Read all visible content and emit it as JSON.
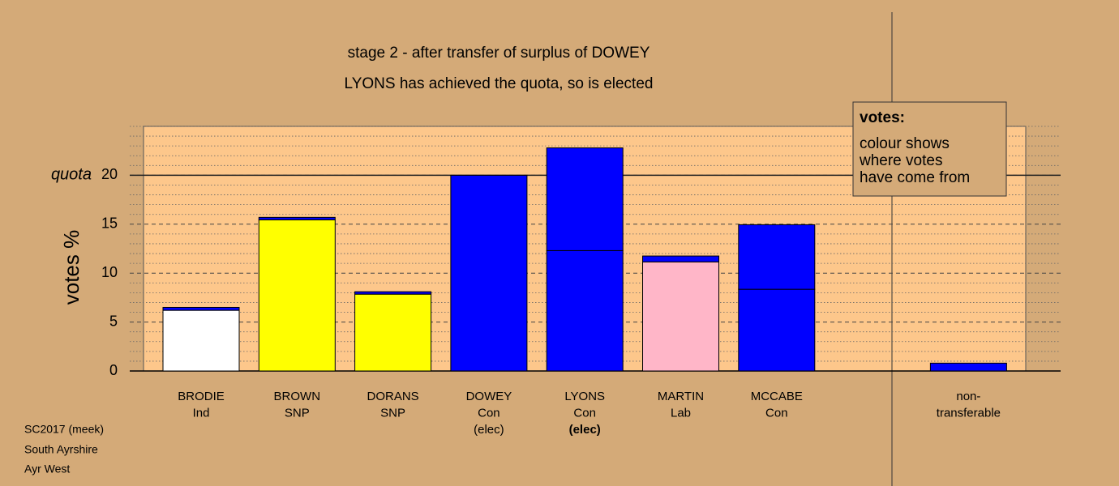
{
  "chart_data": {
    "type": "bar",
    "stacked": true,
    "title": "stage 2 - after transfer of surplus of DOWEY",
    "subtitle": "LYONS has achieved the quota, so is elected",
    "ylabel": "votes %",
    "quota": {
      "label": "quota",
      "value": 20
    },
    "categories": [
      [
        "BRODIE",
        "Ind"
      ],
      [
        "BROWN",
        "SNP"
      ],
      [
        "DORANS",
        "SNP"
      ],
      [
        "DOWEY",
        "Con",
        "(elec)"
      ],
      [
        "LYONS",
        "Con",
        "(elec)"
      ],
      [
        "MARTIN",
        "Lab"
      ],
      [
        "MCCABE",
        "Con"
      ],
      null,
      [
        "non-",
        "transferable"
      ]
    ],
    "highlight": 4,
    "segments": [
      [
        {
          "value": 6.2,
          "color": "#ffffff"
        },
        {
          "value": 0.3,
          "color": "#0000ff"
        }
      ],
      [
        {
          "value": 15.45,
          "color": "#ffff00"
        },
        {
          "value": 0.25,
          "color": "#0000ff"
        }
      ],
      [
        {
          "value": 7.85,
          "color": "#ffff00"
        },
        {
          "value": 0.25,
          "color": "#0000ff"
        }
      ],
      [
        {
          "value": 20.0,
          "color": "#0000ff"
        }
      ],
      [
        {
          "value": 12.3,
          "color": "#0000ff"
        },
        {
          "value": 10.5,
          "color": "#0000ff"
        }
      ],
      [
        {
          "value": 11.15,
          "color": "#ffb6c8"
        },
        {
          "value": 0.6,
          "color": "#0000ff"
        }
      ],
      [
        {
          "value": 8.35,
          "color": "#0000ff"
        },
        {
          "value": 6.6,
          "color": "#0000ff"
        }
      ],
      [],
      [
        {
          "value": 0.8,
          "color": "#0000ff"
        }
      ]
    ],
    "ylim": [
      0,
      25
    ],
    "yticks": [
      0,
      5,
      10,
      15,
      20
    ],
    "minor_yticks": [
      1,
      2,
      3,
      4,
      6,
      7,
      8,
      9,
      11,
      12,
      13,
      14,
      16,
      17,
      18,
      19,
      21,
      22,
      23,
      24,
      25
    ],
    "legend": {
      "title": "votes:",
      "text": [
        "colour shows",
        "where votes",
        "have come from"
      ]
    },
    "footer": [
      "SC2017 (meek)",
      "South Ayrshire",
      "Ayr West"
    ]
  }
}
